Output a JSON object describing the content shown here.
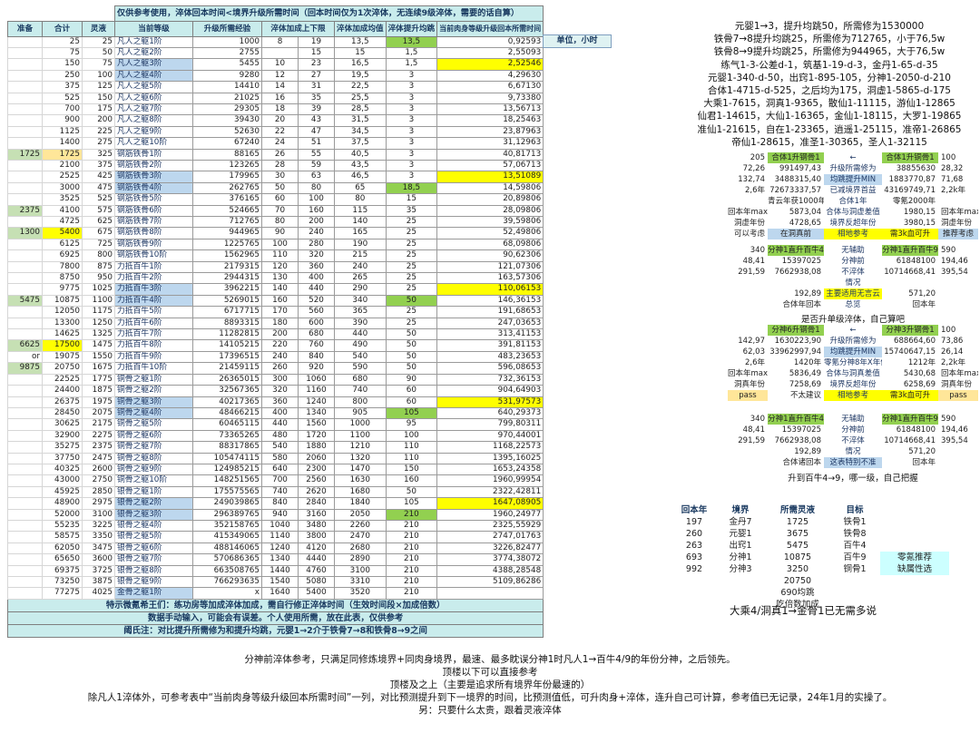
{
  "title_note": "仅供参考使用，淬体回本时间<境界升级所需时间（回本时间仅为1次淬体，无连续9级淬体，需要的话自算）",
  "unit_label": "单位，小时",
  "colors": {
    "header_cyan": "#c9ecec",
    "highlight_yellow": "#ffff00",
    "bright_green": "#92d050",
    "pale_green": "#c6e0b4",
    "light_blue": "#bdd7ee",
    "tan": "#ffe699",
    "note_cyan": "#ccffff"
  },
  "main_table": {
    "headers": [
      "准备",
      "合计",
      "灵液",
      "当前等级",
      "升级所需经验",
      "淬体加成上下限",
      "淬体加成均值",
      "淬体提升均跳",
      "当前肉身等级升级回本所需时间"
    ],
    "rows": [
      [
        "",
        "25",
        "25",
        "凡人之躯1阶",
        "1000",
        "8",
        "19",
        "13,5",
        [
          "13,5",
          "g"
        ],
        "0,92593"
      ],
      [
        "",
        "75",
        "50",
        "凡人之躯2阶",
        "2755",
        "",
        "15",
        "15",
        "1,5",
        "2,55093"
      ],
      [
        "",
        "150",
        "75",
        [
          "凡人之躯3阶",
          "b"
        ],
        "5455",
        "10",
        "23",
        "16,5",
        "1,5",
        [
          "2,52546",
          "y"
        ]
      ],
      [
        "",
        "250",
        "100",
        [
          "凡人之躯4阶",
          "b"
        ],
        "9280",
        "12",
        "27",
        "19,5",
        "3",
        "4,29630"
      ],
      [
        "",
        "375",
        "125",
        "凡人之躯5阶",
        "14410",
        "14",
        "31",
        "22,5",
        "3",
        "6,67130"
      ],
      [
        "",
        "525",
        "150",
        "凡人之躯6阶",
        "21025",
        "16",
        "35",
        "25,5",
        "3",
        "9,73380"
      ],
      [
        "",
        "700",
        "175",
        "凡人之躯7阶",
        "29305",
        "18",
        "39",
        "28,5",
        "3",
        "13,56713"
      ],
      [
        "",
        "900",
        "200",
        "凡人之躯8阶",
        "39430",
        "20",
        "43",
        "31,5",
        "3",
        "18,25463"
      ],
      [
        "",
        "1125",
        "225",
        "凡人之躯9阶",
        "52630",
        "22",
        "47",
        "34,5",
        "3",
        "23,87963"
      ],
      [
        "",
        "1400",
        "275",
        "凡人之躯10阶",
        "67240",
        "24",
        "51",
        "37,5",
        "3",
        "31,12963"
      ],
      [
        [
          "1725",
          "G"
        ],
        [
          "1725",
          "t"
        ],
        "325",
        "钢筋铁骨1阶",
        "88165",
        "26",
        "55",
        "40,5",
        "3",
        "40,81713"
      ],
      [
        "",
        "2100",
        "375",
        "钢筋铁骨2阶",
        "123265",
        "28",
        "59",
        "43,5",
        "3",
        "57,06713"
      ],
      [
        "",
        "2525",
        "425",
        [
          "钢筋铁骨3阶",
          "b"
        ],
        "179965",
        "30",
        "63",
        "46,5",
        "3",
        [
          "13,51089",
          "y"
        ]
      ],
      [
        "",
        "3000",
        "475",
        [
          "钢筋铁骨4阶",
          "b"
        ],
        "262765",
        "50",
        "80",
        "65",
        [
          "18,5",
          "g"
        ],
        "14,59806"
      ],
      [
        "",
        "3525",
        "525",
        "钢筋铁骨5阶",
        "376165",
        "60",
        "100",
        "80",
        "15",
        "20,89806"
      ],
      [
        [
          "2375",
          "G"
        ],
        "4100",
        "575",
        "钢筋铁骨6阶",
        "524665",
        "70",
        "160",
        "115",
        "35",
        "28,09806"
      ],
      [
        "",
        "4725",
        "625",
        "钢筋铁骨7阶",
        "712765",
        "80",
        "200",
        "140",
        "25",
        "39,59806"
      ],
      [
        [
          "1300",
          "G"
        ],
        [
          "5400",
          "y"
        ],
        "675",
        "钢筋铁骨8阶",
        "944965",
        "90",
        "240",
        "165",
        "25",
        "52,49806"
      ],
      [
        "",
        "6125",
        "725",
        "钢筋铁骨9阶",
        "1225765",
        "100",
        "280",
        "190",
        "25",
        "68,09806"
      ],
      [
        "",
        "6925",
        "800",
        "钢筋铁骨10阶",
        "1562965",
        "110",
        "320",
        "215",
        "25",
        "90,62306"
      ],
      [
        "",
        "7800",
        "875",
        "力抵百牛1阶",
        "2179315",
        "120",
        "360",
        "240",
        "25",
        "121,07306"
      ],
      [
        "",
        "8750",
        "950",
        "力抵百牛2阶",
        "2944315",
        "130",
        "400",
        "265",
        "25",
        "163,57306"
      ],
      [
        "",
        "9775",
        "1025",
        [
          "力抵百牛3阶",
          "b"
        ],
        "3962215",
        "140",
        "440",
        "290",
        "25",
        [
          "110,06153",
          "y"
        ]
      ],
      [
        [
          "5475",
          "G"
        ],
        "10875",
        "1100",
        [
          "力抵百牛4阶",
          "b"
        ],
        "5269015",
        "160",
        "520",
        "340",
        [
          "50",
          "g"
        ],
        "146,36153"
      ],
      [
        "",
        "12050",
        "1175",
        "力抵百牛5阶",
        "6717715",
        "170",
        "560",
        "365",
        "25",
        "191,68653"
      ],
      [
        "",
        "13300",
        "1250",
        "力抵百牛6阶",
        "8893315",
        "180",
        "600",
        "390",
        "25",
        "247,03653"
      ],
      [
        "",
        "14625",
        "1325",
        "力抵百牛7阶",
        "11282815",
        "200",
        "680",
        "440",
        "50",
        "313,41153"
      ],
      [
        [
          "6625",
          "G"
        ],
        [
          "17500",
          "y"
        ],
        "1475",
        "力抵百牛8阶",
        "14105215",
        "220",
        "760",
        "490",
        "50",
        "391,81153"
      ],
      [
        "or",
        "19075",
        "1550",
        "力抵百牛9阶",
        "17396515",
        "240",
        "840",
        "540",
        "50",
        "483,23653"
      ],
      [
        [
          "9875",
          "G"
        ],
        "20750",
        "1675",
        "力抵百牛10阶",
        "21459115",
        "260",
        "920",
        "590",
        "50",
        "596,08653"
      ],
      [
        "",
        "22525",
        "1775",
        "铜骨之躯1阶",
        "26365015",
        "300",
        "1060",
        "680",
        "90",
        "732,36153"
      ],
      [
        "",
        "24400",
        "1875",
        "铜骨之躯2阶",
        "32567365",
        "320",
        "1160",
        "740",
        "60",
        "904,64903"
      ],
      [
        "",
        "26375",
        "1975",
        [
          "铜骨之躯3阶",
          "b"
        ],
        "40217365",
        "360",
        "1240",
        "800",
        "60",
        [
          "531,97573",
          "y"
        ]
      ],
      [
        "",
        "28450",
        "2075",
        [
          "铜骨之躯4阶",
          "b"
        ],
        "48466215",
        "400",
        "1340",
        "905",
        [
          "105",
          "g"
        ],
        "640,29373"
      ],
      [
        "",
        "30625",
        "2175",
        "铜骨之躯5阶",
        "60465115",
        "440",
        "1560",
        "1000",
        "95",
        "799,80311"
      ],
      [
        "",
        "32900",
        "2275",
        "铜骨之躯6阶",
        "73365265",
        "480",
        "1720",
        "1100",
        "100",
        "970,44001"
      ],
      [
        "",
        "35275",
        "2375",
        "铜骨之躯7阶",
        "88317865",
        "540",
        "1880",
        "1210",
        "110",
        "1168,22573"
      ],
      [
        "",
        "37750",
        "2475",
        "铜骨之躯8阶",
        "105474115",
        "580",
        "2060",
        "1320",
        "110",
        "1395,16025"
      ],
      [
        "",
        "40325",
        "2600",
        "铜骨之躯9阶",
        "124985215",
        "640",
        "2300",
        "1470",
        "150",
        "1653,24358"
      ],
      [
        "",
        "43000",
        "2750",
        "铜骨之躯10阶",
        "148251565",
        "700",
        "2560",
        "1630",
        "160",
        "1960,99954"
      ],
      [
        "",
        "45925",
        "2850",
        "银骨之躯1阶",
        "175575565",
        "740",
        "2620",
        "1680",
        "50",
        "2322,42811"
      ],
      [
        "",
        "48900",
        "2975",
        [
          "银骨之躯2阶",
          "b"
        ],
        "249039865",
        "840",
        "2840",
        "1840",
        "105",
        [
          "1647,08905",
          "y"
        ]
      ],
      [
        "",
        "52000",
        "3100",
        [
          "银骨之躯3阶",
          "b"
        ],
        "296389765",
        "940",
        "3160",
        "2050",
        [
          "210",
          "g"
        ],
        "1960,24977"
      ],
      [
        "",
        "55235",
        "3225",
        "银骨之躯4阶",
        "352158765",
        "1040",
        "3480",
        "2260",
        "210",
        "2325,55929"
      ],
      [
        "",
        "58575",
        "3350",
        "银骨之躯5阶",
        "415349065",
        "1140",
        "3800",
        "2470",
        "210",
        "2747,01763"
      ],
      [
        "",
        "62050",
        "3475",
        "银骨之躯6阶",
        "488146065",
        "1240",
        "4120",
        "2680",
        "210",
        "3226,82477"
      ],
      [
        "",
        "65650",
        "3600",
        "银骨之躯7阶",
        "570686365",
        "1340",
        "4440",
        "2890",
        "210",
        "3774,38072"
      ],
      [
        "",
        "69375",
        "3725",
        "银骨之躯8阶",
        "663508765",
        "1440",
        "4760",
        "3100",
        "210",
        "4388,28548"
      ],
      [
        "",
        "73250",
        "3875",
        "银骨之躯9阶",
        "766293635",
        "1540",
        "5080",
        "3310",
        "210",
        "5109,86286"
      ],
      [
        "",
        "77275",
        "4025",
        [
          "金骨之躯1阶",
          "b"
        ],
        "x",
        "1640",
        "5400",
        "3520",
        "210",
        ""
      ]
    ],
    "footer_notes": [
      "特示微氪希王们：练功房等加成淬体加成，需自行修正淬体时间（生效时间段×加成倍数）",
      "数据手动输入，可能会有误差。个人使用所需，放在此表，仅供参考",
      "阈氏注：对比提升所需修为和提升均跳，元婴1→2介于铁骨7→8和铁骨8→9之间"
    ]
  },
  "realm_notes": [
    "元婴1→3，提升均跳50，所需修为1530000",
    "铁骨7→8提升均跳25，所需修为712765，小于76,5w",
    "铁骨8→9提升均跳25，所需修为944965，大于76,5w",
    "练气1-3-公差d-1，筑基1-19-d-3，金丹1-65-d-35",
    "元婴1-340-d-50，出窍1-895-105，分神1-2050-d-210",
    "合体1-4715-d-525，之后均为175，洞虚1-5865-d-175",
    "大乘1-7615，洞真1-9365，散仙1-11115，游仙1-12865",
    "仙君1-14615，大仙1-16365，金仙1-18115，大罗1-19865",
    "准仙1-21615，自在1-23365，逍遥1-25115，准帝1-26865",
    "帝仙1-28615，准圣1-30365，圣人1-32115"
  ],
  "right_blocks": {
    "a": {
      "rows": [
        [
          "205",
          [
            "合体1升钢骨1",
            "g"
          ],
          "←",
          [
            "合体1升铜骨1",
            "g"
          ],
          "100"
        ],
        [
          "72,26",
          "991497,43",
          "升级所需修为",
          "38855630",
          "28,32"
        ],
        [
          "132,74",
          "3488315,40",
          [
            "均跳提升MIN",
            "b"
          ],
          "1883770,87",
          "71,68"
        ],
        [
          "2,6年",
          "72673337,57",
          "已减境界首益",
          "43169749,71",
          "2,2k年"
        ],
        [
          "",
          "青云年获1000年",
          "合体1年",
          "零氪2000年",
          ""
        ],
        [
          "回本年max",
          "5873,04",
          "合体与洞虚差值",
          "1980,15",
          "回本年max"
        ],
        [
          "洞虚年份",
          "4728,65",
          "境界反超年份",
          "3980,15",
          "洞虚年份"
        ],
        [
          "可以考虑",
          [
            "在洞真前",
            "b"
          ],
          [
            "相地参考",
            "y"
          ],
          [
            "需3k血可升",
            "y"
          ],
          [
            "推荐考虑",
            "b"
          ]
        ]
      ]
    },
    "b": {
      "rows": [
        [
          "340",
          [
            "分神1直升百牛4",
            "g"
          ],
          "无辅助",
          [
            "分神1直升百牛9",
            "g"
          ],
          "590"
        ],
        [
          "48,41",
          "15397025",
          "分神前",
          "61848100",
          "194,46"
        ],
        [
          "291,59",
          "7662938,08",
          "不淬体",
          "10714668,41",
          "395,54"
        ],
        [
          "",
          "",
          "情况",
          "",
          ""
        ],
        [
          "",
          "192,89",
          [
            "主要适用无言云",
            "y"
          ],
          "571,20",
          ""
        ],
        [
          "",
          "合体年回本",
          "总览",
          "回本年",
          ""
        ]
      ],
      "footer": "是否升单级淬体，自己算吧"
    },
    "c": {
      "rows": [
        [
          "",
          [
            "分神6升钢骨1",
            "g"
          ],
          "←",
          [
            "分神3升钢骨1",
            "g"
          ],
          "100"
        ],
        [
          "142,97",
          "1630223,90",
          "升级所需修为",
          "688664,60",
          "73,86"
        ],
        [
          "62,03",
          "33962997,94",
          [
            "均跳提升MIN",
            "b"
          ],
          "15740647,15",
          "26,14"
        ],
        [
          "2,6年",
          "1420年",
          "零氪分神8年X年份",
          "1212年",
          "2,2k年"
        ],
        [
          "回本年max",
          "5836,49",
          "合体与洞真差值",
          "5430,68",
          "回本年max"
        ],
        [
          "洞真年份",
          "7258,69",
          "境界反超年份",
          "6258,69",
          "洞真年份"
        ],
        [
          [
            "pass",
            "t"
          ],
          "不太建议",
          [
            "相地参考",
            "y"
          ],
          [
            "需3k血可升",
            "y"
          ],
          [
            "pass",
            "t"
          ]
        ]
      ]
    },
    "d": {
      "rows": [
        [
          "340",
          [
            "分神1直升百牛4",
            "g"
          ],
          "无辅助",
          [
            "分神1直升百牛9",
            "g"
          ],
          "590"
        ],
        [
          "48,41",
          "15397025",
          "分神前",
          "61848100",
          "194,46"
        ],
        [
          "291,59",
          "7662938,08",
          "不淬体",
          "10714668,41",
          "395,54"
        ],
        [
          "",
          "192,89",
          "情况",
          "571,20",
          ""
        ],
        [
          "",
          "合体诸回本",
          [
            "这表特别不准",
            "b"
          ],
          "回本年",
          ""
        ]
      ],
      "footer": "升到百牛4→9，哪一级，自己把握"
    }
  },
  "target_table": {
    "headers": [
      "回本年",
      "境界",
      "所需灵液",
      "目标",
      ""
    ],
    "rows": [
      [
        "197",
        "金丹7",
        "1725",
        "铁骨1",
        ""
      ],
      [
        "260",
        "元婴1",
        "3675",
        "铁骨8",
        ""
      ],
      [
        "263",
        "出窍1",
        "5475",
        "百牛4",
        ""
      ],
      [
        "693",
        "分神1",
        "10875",
        "百牛9",
        [
          "零氪推荐",
          "c"
        ]
      ],
      [
        "992",
        "分神3",
        "3250",
        "铜骨1",
        [
          "缺属性选",
          "c"
        ]
      ],
      [
        "",
        "",
        "20750",
        "",
        ""
      ],
      [
        "",
        "",
        "690均跳",
        "",
        ""
      ],
      [
        "",
        "",
        "吃倍数加成",
        "",
        ""
      ]
    ],
    "footer": "大乘4/洞真1→金骨1已无需多说"
  },
  "bottom_notes": [
    "分神前淬体参考，只满足同修炼境界+同肉身境界，最速、最多眈误分神1时凡人1→百牛4/9的年份分神，之后领先。",
    "顶楼以下可以直接参考",
    "顶楼及之上（主要是追求所有境界年份最速的）",
    "除凡人1淬体外，可参考表中“当前肉身等级升级回本所需时间”一列，对比预测提升到下一境界的时间，比预测值低，可升肉身+淬体，连升自己可计算，参考值已无记录，24年1月的实操了。",
    "另：只要什么太贵，跟着灵液淬体"
  ]
}
